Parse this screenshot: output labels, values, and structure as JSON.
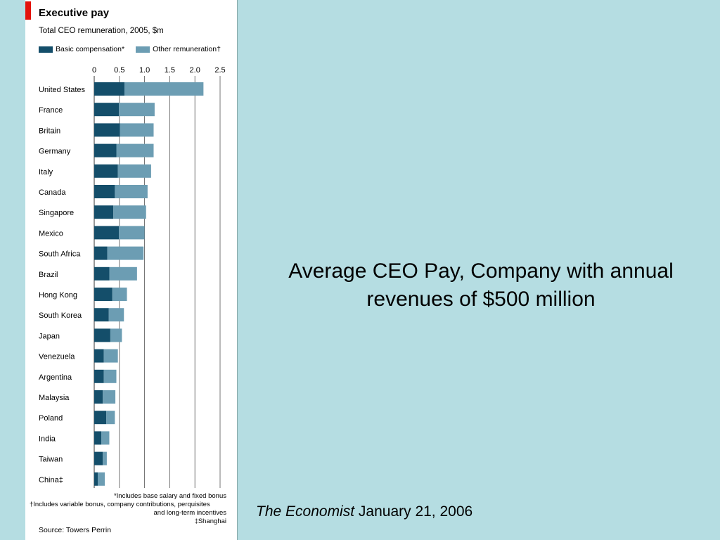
{
  "slide": {
    "title": "Average CEO Pay, Company with annual revenues of $500 million",
    "citation_publication": "The Economist",
    "citation_date": "January 21, 2006"
  },
  "colors": {
    "basic": "#144e6a",
    "other": "#6c9db3",
    "grid": "#555555",
    "accent": "#e3120b"
  },
  "chart_data": {
    "type": "bar",
    "orientation": "horizontal",
    "stacked": true,
    "title": "Executive pay",
    "subtitle": "Total CEO remuneration, 2005, $m",
    "xlim": [
      0,
      2.5
    ],
    "xticks": [
      "0",
      "0.5",
      "1.0",
      "1.5",
      "2.0",
      "2.5"
    ],
    "grid": true,
    "legend_position": "top-left",
    "categories": [
      "United States",
      "France",
      "Britain",
      "Germany",
      "Italy",
      "Canada",
      "Singapore",
      "Mexico",
      "South Africa",
      "Brazil",
      "Hong Kong",
      "South Korea",
      "Japan",
      "Venezuela",
      "Argentina",
      "Malaysia",
      "Poland",
      "India",
      "Taiwan",
      "China‡"
    ],
    "series": [
      {
        "name": "Basic compensation*",
        "values": [
          0.6,
          0.49,
          0.51,
          0.44,
          0.47,
          0.41,
          0.38,
          0.49,
          0.26,
          0.3,
          0.36,
          0.29,
          0.32,
          0.19,
          0.19,
          0.17,
          0.24,
          0.14,
          0.17,
          0.07
        ]
      },
      {
        "name": "Other remuneration†",
        "values": [
          1.57,
          0.71,
          0.67,
          0.74,
          0.66,
          0.65,
          0.65,
          0.51,
          0.72,
          0.55,
          0.29,
          0.3,
          0.23,
          0.28,
          0.25,
          0.25,
          0.17,
          0.16,
          0.08,
          0.14
        ]
      }
    ],
    "footnotes": [
      "*Includes base salary and fixed bonus",
      "†Includes variable bonus, company contributions, perquisites",
      "and long-term incentives",
      "‡Shanghai"
    ],
    "source": "Source: Towers Perrin"
  }
}
